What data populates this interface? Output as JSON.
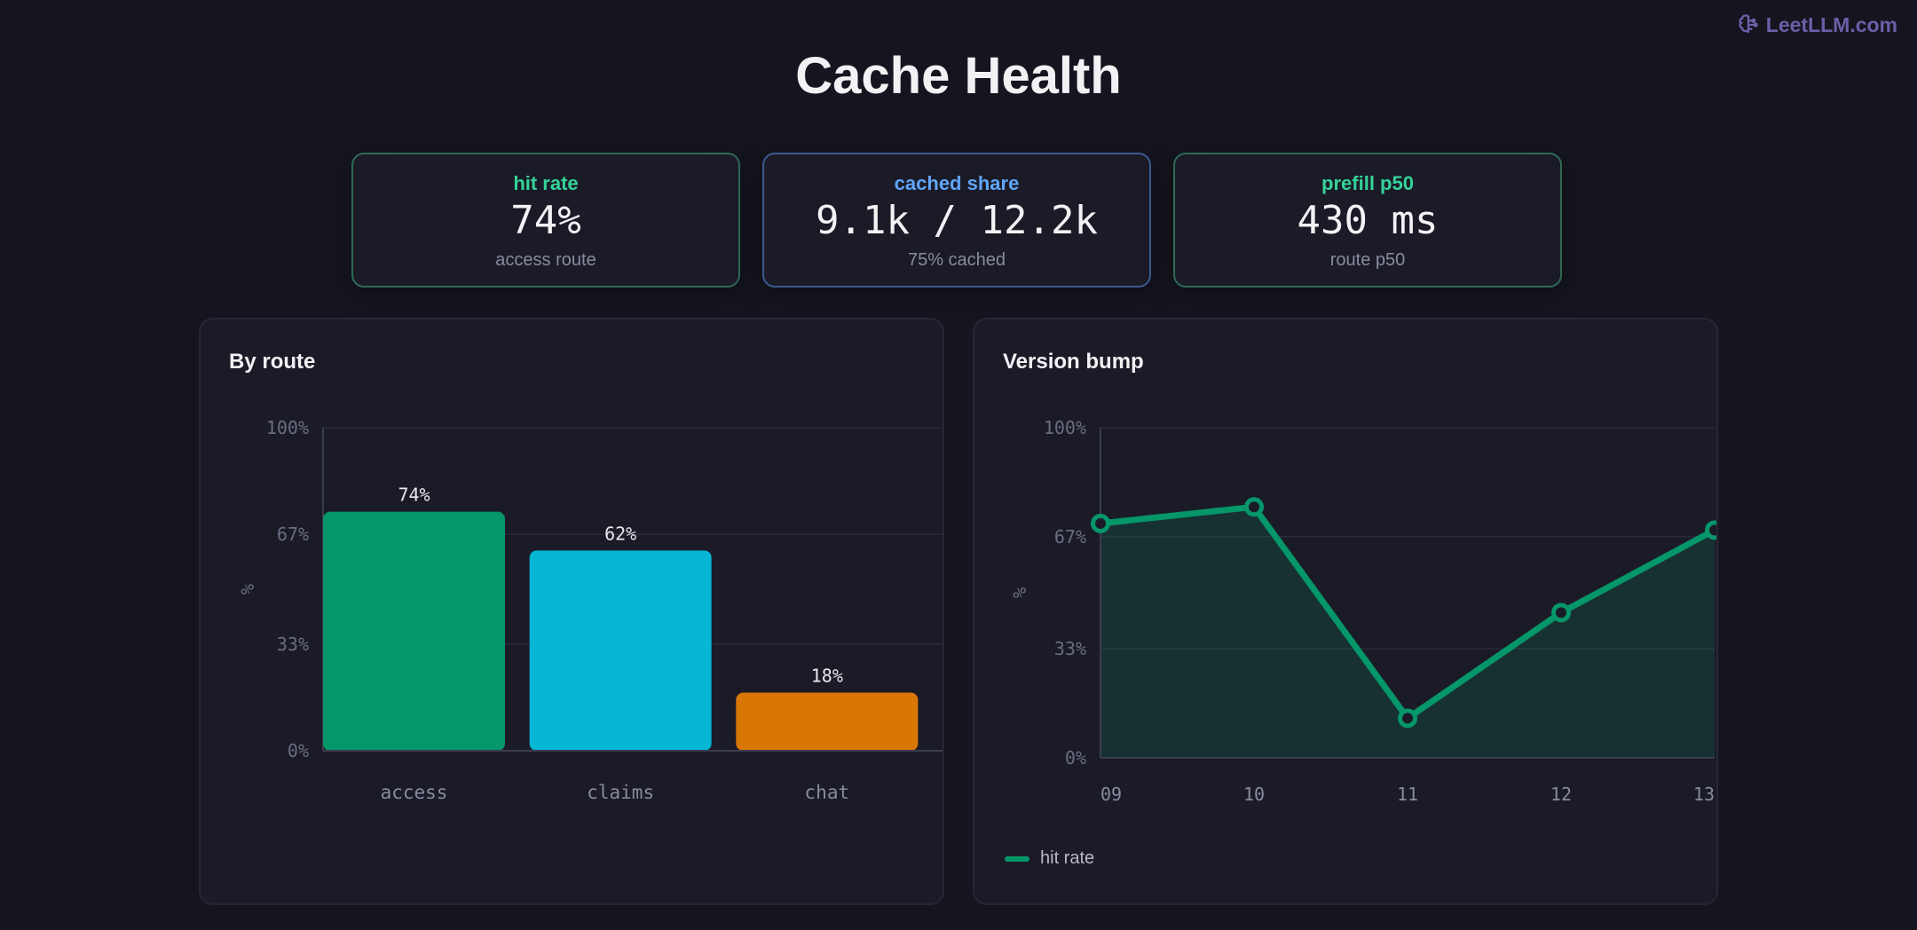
{
  "brand": {
    "name": "LeetLLM.com",
    "icon": "brain-icon"
  },
  "title": "Cache Health",
  "kpis": [
    {
      "label": "hit rate",
      "value": "74%",
      "sub": "access route",
      "accent": "#34d399"
    },
    {
      "label": "cached share",
      "value": "9.1k / 12.2k",
      "sub": "75% cached",
      "accent": "#60a5fa"
    },
    {
      "label": "prefill p50",
      "value": "430 ms",
      "sub": "route p50",
      "accent": "#34d399"
    }
  ],
  "chart_data": [
    {
      "type": "bar",
      "title": "By route",
      "categories": [
        "access",
        "claims",
        "chat"
      ],
      "values": [
        74,
        62,
        18
      ],
      "data_labels": [
        "74%",
        "62%",
        "18%"
      ],
      "colors": [
        "#059669",
        "#06b6d4",
        "#d97706"
      ],
      "ylabel": "%",
      "ylim": [
        0,
        100
      ],
      "yticks": [
        0,
        33,
        67,
        100
      ],
      "ytick_labels": [
        "0%",
        "33%",
        "67%",
        "100%"
      ],
      "grid": true
    },
    {
      "type": "line",
      "title": "Version bump",
      "x": [
        "09",
        "10",
        "11",
        "12",
        "13"
      ],
      "series": [
        {
          "name": "hit rate",
          "values": [
            71,
            76,
            12,
            44,
            69
          ],
          "color": "#059669"
        }
      ],
      "ylabel": "%",
      "ylim": [
        0,
        100
      ],
      "yticks": [
        0,
        33,
        67,
        100
      ],
      "ytick_labels": [
        "0%",
        "33%",
        "67%",
        "100%"
      ],
      "grid": true,
      "legend": "bottom-left"
    }
  ]
}
